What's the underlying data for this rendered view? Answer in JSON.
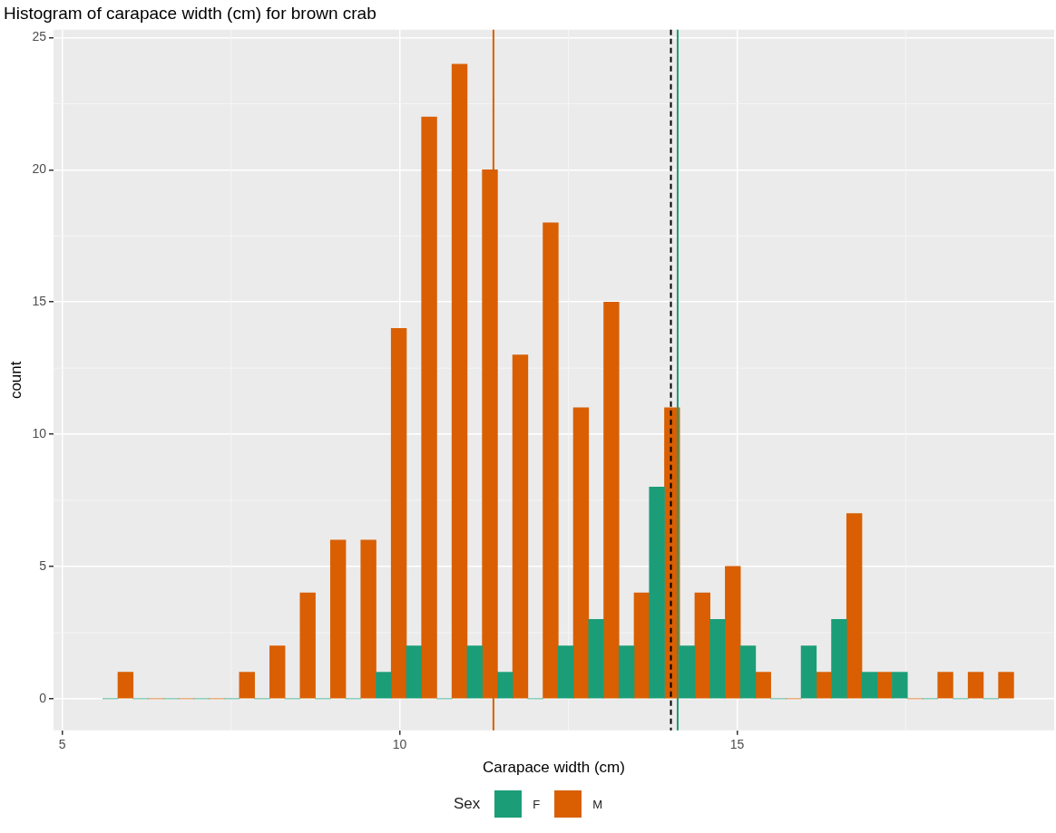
{
  "chart_data": {
    "type": "histogram",
    "title": "Histogram of carapace width (cm) for brown crab",
    "xlabel": "Carapace width (cm)",
    "ylabel": "count",
    "legend_title": "Sex",
    "bins": [
      5.6,
      6.05,
      6.5,
      6.95,
      7.4,
      7.85,
      8.3,
      8.75,
      9.2,
      9.65,
      10.1,
      10.55,
      11.0,
      11.45,
      11.9,
      12.35,
      12.8,
      13.25,
      13.7,
      14.15,
      14.6,
      15.05,
      15.5,
      15.95,
      16.4,
      16.85,
      17.3,
      17.75,
      18.2,
      18.65,
      19.1
    ],
    "series": [
      {
        "name": "F",
        "color": "#1b9e77",
        "values": [
          0,
          0,
          0,
          0,
          0,
          0,
          0,
          0,
          0,
          1,
          2,
          0,
          2,
          1,
          0,
          2,
          3,
          2,
          8,
          2,
          3,
          2,
          0,
          2,
          3,
          1,
          1,
          0,
          0,
          0
        ]
      },
      {
        "name": "M",
        "color": "#d95f02",
        "values": [
          1,
          0,
          0,
          0,
          1,
          2,
          4,
          6,
          6,
          14,
          22,
          24,
          20,
          13,
          18,
          11,
          15,
          4,
          11,
          4,
          5,
          1,
          0,
          1,
          7,
          1,
          0,
          1,
          1,
          1
        ]
      }
    ],
    "xlim": [
      4.87,
      19.7
    ],
    "xticks": [
      5,
      10,
      15
    ],
    "ylim": [
      -1.2,
      25.3
    ],
    "yticks": [
      0,
      5,
      10,
      15,
      20,
      25
    ],
    "grid": true,
    "legend": "bottom",
    "ref_lines": [
      {
        "axis": "x",
        "value": 11.39,
        "color": "#d95f02",
        "line_style": "solid"
      },
      {
        "axis": "x",
        "value": 14.02,
        "color": "#000000",
        "line_style": "dashed"
      },
      {
        "axis": "x",
        "value": 14.12,
        "color": "#1b9e77",
        "line_style": "solid"
      }
    ]
  }
}
